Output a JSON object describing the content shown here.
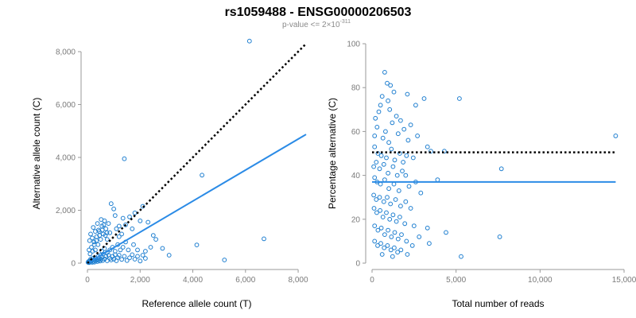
{
  "figure": {
    "title": "rs1059488 - ENSG00000206503",
    "subtitle_prefix": "p-value <= 2×10",
    "subtitle_exponent": "-311",
    "colors": {
      "points": "#1f7fd0",
      "fit_line": "#2b8be6",
      "reference_line": "#000000"
    }
  },
  "chart_data": [
    {
      "type": "scatter",
      "xlabel": "Reference allele count (T)",
      "ylabel": "Alternative allele count (C)",
      "xlim": [
        0,
        8300
      ],
      "ylim": [
        0,
        8300
      ],
      "xticks": [
        0,
        2000,
        4000,
        6000,
        8000
      ],
      "xtick_labels": [
        "0",
        "2,000",
        "4,000",
        "6,000",
        "8,000"
      ],
      "yticks": [
        0,
        2000,
        4000,
        6000,
        8000
      ],
      "ytick_labels": [
        "0",
        "2,000",
        "4,000",
        "6,000",
        "8,000"
      ],
      "grid": false,
      "points": [
        [
          20,
          30
        ],
        [
          40,
          60
        ],
        [
          60,
          20
        ],
        [
          80,
          90
        ],
        [
          100,
          40
        ],
        [
          120,
          150
        ],
        [
          140,
          70
        ],
        [
          160,
          110
        ],
        [
          180,
          30
        ],
        [
          200,
          180
        ],
        [
          220,
          60
        ],
        [
          250,
          120
        ],
        [
          270,
          40
        ],
        [
          300,
          200
        ],
        [
          320,
          90
        ],
        [
          350,
          150
        ],
        [
          380,
          60
        ],
        [
          400,
          250
        ],
        [
          420,
          110
        ],
        [
          450,
          180
        ],
        [
          480,
          80
        ],
        [
          500,
          300
        ],
        [
          520,
          140
        ],
        [
          550,
          220
        ],
        [
          580,
          100
        ],
        [
          600,
          350
        ],
        [
          650,
          160
        ],
        [
          700,
          260
        ],
        [
          750,
          90
        ],
        [
          800,
          300
        ],
        [
          850,
          180
        ],
        [
          900,
          120
        ],
        [
          950,
          260
        ],
        [
          1000,
          150
        ],
        [
          1050,
          320
        ],
        [
          1100,
          90
        ],
        [
          1150,
          210
        ],
        [
          1200,
          300
        ],
        [
          1300,
          140
        ],
        [
          1400,
          260
        ],
        [
          1500,
          100
        ],
        [
          1600,
          200
        ],
        [
          1700,
          320
        ],
        [
          1800,
          150
        ],
        [
          1900,
          260
        ],
        [
          2000,
          80
        ],
        [
          2100,
          300
        ],
        [
          2200,
          180
        ],
        [
          100,
          350
        ],
        [
          150,
          600
        ],
        [
          200,
          450
        ],
        [
          250,
          800
        ],
        [
          300,
          500
        ],
        [
          350,
          1000
        ],
        [
          400,
          700
        ],
        [
          450,
          1200
        ],
        [
          500,
          900
        ],
        [
          550,
          1400
        ],
        [
          600,
          1100
        ],
        [
          650,
          1600
        ],
        [
          700,
          1300
        ],
        [
          750,
          900
        ],
        [
          800,
          1500
        ],
        [
          850,
          1150
        ],
        [
          900,
          2250
        ],
        [
          1000,
          2050
        ],
        [
          1050,
          1800
        ],
        [
          1100,
          1300
        ],
        [
          1200,
          1400
        ],
        [
          1300,
          1100
        ],
        [
          1350,
          1700
        ],
        [
          1450,
          1450
        ],
        [
          1600,
          1750
        ],
        [
          1700,
          1300
        ],
        [
          1800,
          1900
        ],
        [
          2000,
          1600
        ],
        [
          2100,
          2150
        ],
        [
          2300,
          1550
        ],
        [
          2500,
          1050
        ],
        [
          1200,
          1000
        ],
        [
          60,
          500
        ],
        [
          80,
          850
        ],
        [
          120,
          1100
        ],
        [
          180,
          950
        ],
        [
          220,
          1350
        ],
        [
          260,
          700
        ],
        [
          300,
          1200
        ],
        [
          340,
          850
        ],
        [
          380,
          1500
        ],
        [
          420,
          1250
        ],
        [
          460,
          1050
        ],
        [
          520,
          1650
        ],
        [
          560,
          1250
        ],
        [
          620,
          1450
        ],
        [
          680,
          1050
        ],
        [
          740,
          1150
        ],
        [
          1400,
          3950
        ],
        [
          4350,
          3330
        ],
        [
          6150,
          8400
        ],
        [
          6700,
          920
        ],
        [
          5200,
          120
        ],
        [
          4150,
          690
        ],
        [
          3100,
          300
        ],
        [
          2850,
          560
        ],
        [
          2400,
          600
        ],
        [
          2200,
          450
        ],
        [
          2600,
          900
        ],
        [
          1900,
          500
        ],
        [
          1750,
          700
        ],
        [
          1550,
          500
        ],
        [
          1450,
          800
        ],
        [
          1350,
          600
        ],
        [
          1250,
          500
        ],
        [
          1150,
          700
        ],
        [
          1050,
          450
        ],
        [
          950,
          600
        ],
        [
          850,
          500
        ],
        [
          750,
          400
        ],
        [
          650,
          550
        ],
        [
          550,
          450
        ]
      ],
      "fit_line": {
        "x": [
          0,
          8300
        ],
        "y": [
          0,
          4870
        ]
      },
      "reference_line": {
        "x": [
          0,
          8300
        ],
        "y": [
          0,
          8300
        ]
      }
    },
    {
      "type": "scatter",
      "xlabel": "Total number of reads",
      "ylabel": "Percentage alternative (C)",
      "xlim": [
        0,
        15000
      ],
      "ylim": [
        0,
        100
      ],
      "xticks": [
        0,
        5000,
        10000,
        15000
      ],
      "xtick_labels": [
        "0",
        "5,000",
        "10,000",
        "15,000"
      ],
      "yticks": [
        0,
        20,
        40,
        60,
        80,
        100
      ],
      "ytick_labels": [
        "0",
        "20",
        "40",
        "60",
        "80",
        "100"
      ],
      "grid": false,
      "points": [
        [
          750,
          87
        ],
        [
          900,
          82
        ],
        [
          1100,
          81
        ],
        [
          1300,
          78
        ],
        [
          600,
          76
        ],
        [
          2100,
          77
        ],
        [
          500,
          72
        ],
        [
          950,
          74
        ],
        [
          3100,
          75
        ],
        [
          2600,
          72
        ],
        [
          5200,
          75
        ],
        [
          200,
          66
        ],
        [
          400,
          69
        ],
        [
          1050,
          70
        ],
        [
          1450,
          67
        ],
        [
          1700,
          65
        ],
        [
          300,
          62
        ],
        [
          800,
          60
        ],
        [
          1200,
          64
        ],
        [
          1900,
          61
        ],
        [
          2300,
          63
        ],
        [
          150,
          58
        ],
        [
          650,
          57
        ],
        [
          1000,
          55
        ],
        [
          1550,
          59
        ],
        [
          2150,
          56
        ],
        [
          2700,
          58
        ],
        [
          3300,
          53
        ],
        [
          3500,
          51
        ],
        [
          4300,
          51
        ],
        [
          150,
          53
        ],
        [
          350,
          50
        ],
        [
          550,
          49
        ],
        [
          850,
          48
        ],
        [
          1150,
          52
        ],
        [
          1350,
          47
        ],
        [
          1650,
          50
        ],
        [
          1850,
          46
        ],
        [
          2050,
          49
        ],
        [
          2450,
          48
        ],
        [
          100,
          44
        ],
        [
          250,
          46
        ],
        [
          450,
          43
        ],
        [
          700,
          45
        ],
        [
          950,
          41
        ],
        [
          1250,
          44
        ],
        [
          1500,
          40
        ],
        [
          1800,
          42
        ],
        [
          2000,
          40
        ],
        [
          2600,
          37
        ],
        [
          3900,
          38
        ],
        [
          7700,
          43
        ],
        [
          14500,
          58
        ],
        [
          150,
          39
        ],
        [
          300,
          37
        ],
        [
          500,
          36
        ],
        [
          750,
          38
        ],
        [
          1000,
          34
        ],
        [
          1300,
          36
        ],
        [
          1600,
          33
        ],
        [
          2200,
          35
        ],
        [
          2900,
          32
        ],
        [
          100,
          31
        ],
        [
          250,
          29
        ],
        [
          450,
          30
        ],
        [
          700,
          28
        ],
        [
          900,
          30
        ],
        [
          1100,
          27
        ],
        [
          1400,
          29
        ],
        [
          1700,
          26
        ],
        [
          2000,
          28
        ],
        [
          2300,
          25
        ],
        [
          120,
          25
        ],
        [
          280,
          23
        ],
        [
          480,
          24
        ],
        [
          650,
          21
        ],
        [
          850,
          23
        ],
        [
          1050,
          20
        ],
        [
          1250,
          22
        ],
        [
          1450,
          19
        ],
        [
          1650,
          21
        ],
        [
          1950,
          18
        ],
        [
          2500,
          17
        ],
        [
          3300,
          16
        ],
        [
          150,
          17
        ],
        [
          350,
          15
        ],
        [
          550,
          16
        ],
        [
          750,
          13
        ],
        [
          950,
          15
        ],
        [
          1150,
          12
        ],
        [
          1350,
          14
        ],
        [
          1550,
          11
        ],
        [
          1750,
          13
        ],
        [
          2050,
          10
        ],
        [
          2800,
          12
        ],
        [
          4400,
          14
        ],
        [
          7600,
          12
        ],
        [
          150,
          10
        ],
        [
          330,
          8
        ],
        [
          520,
          9
        ],
        [
          720,
          7
        ],
        [
          920,
          8
        ],
        [
          1120,
          6
        ],
        [
          1320,
          7
        ],
        [
          1520,
          5
        ],
        [
          1720,
          6
        ],
        [
          1220,
          3
        ],
        [
          2100,
          4
        ],
        [
          5300,
          3
        ],
        [
          3400,
          9
        ],
        [
          2400,
          8
        ],
        [
          600,
          4
        ]
      ],
      "fit_line": {
        "x": [
          0,
          14500
        ],
        "y": [
          37,
          37
        ]
      },
      "reference_line": {
        "x": [
          0,
          14500
        ],
        "y": [
          50.5,
          50.5
        ]
      }
    }
  ]
}
